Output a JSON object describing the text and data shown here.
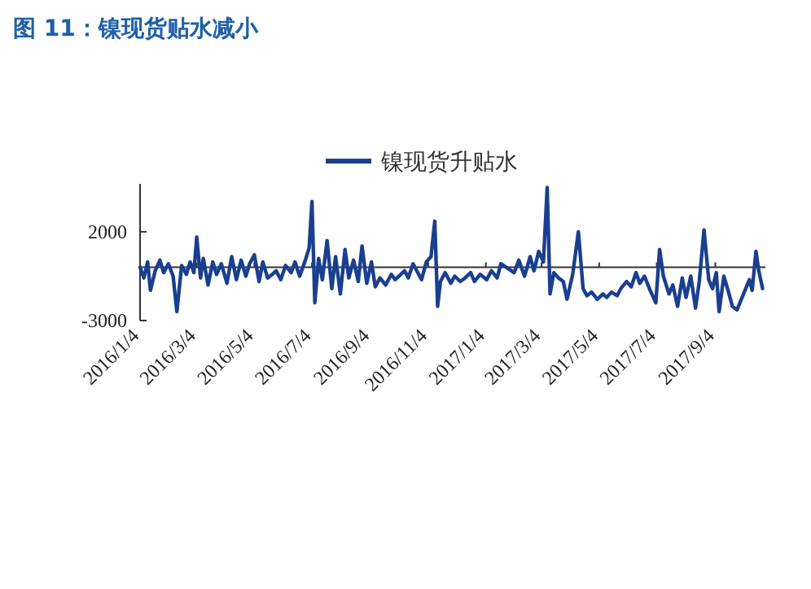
{
  "chart_data": {
    "type": "line",
    "title": "图 11：镍现货贴水减小",
    "legend": "top",
    "grid": false,
    "marker": "none",
    "line_style": "solid",
    "xlim": [
      "2016-01-04",
      "2017-10-27"
    ],
    "ylim": [
      -3000,
      4700
    ],
    "yticks": [
      -3000,
      2000
    ],
    "xticks": [
      {
        "value": "2016-01-04",
        "label": "2016/1/4"
      },
      {
        "value": "2016-03-04",
        "label": "2016/3/4"
      },
      {
        "value": "2016-05-04",
        "label": "2016/5/4"
      },
      {
        "value": "2016-07-04",
        "label": "2016/7/4"
      },
      {
        "value": "2016-09-04",
        "label": "2016/9/4"
      },
      {
        "value": "2016-11-04",
        "label": "2016/11/4"
      },
      {
        "value": "2017-01-04",
        "label": "2017/1/4"
      },
      {
        "value": "2017-03-04",
        "label": "2017/3/4"
      },
      {
        "value": "2017-05-04",
        "label": "2017/5/4"
      },
      {
        "value": "2017-07-04",
        "label": "2017/7/4"
      },
      {
        "value": "2017-09-04",
        "label": "2017/9/4"
      }
    ],
    "x": [
      "2016-01-04",
      "2016-01-08",
      "2016-01-12",
      "2016-01-15",
      "2016-01-20",
      "2016-01-25",
      "2016-01-29",
      "2016-02-03",
      "2016-02-08",
      "2016-02-12",
      "2016-02-17",
      "2016-02-22",
      "2016-02-26",
      "2016-03-01",
      "2016-03-04",
      "2016-03-08",
      "2016-03-11",
      "2016-03-16",
      "2016-03-21",
      "2016-03-25",
      "2016-03-30",
      "2016-04-05",
      "2016-04-10",
      "2016-04-15",
      "2016-04-20",
      "2016-04-25",
      "2016-04-29",
      "2016-05-04",
      "2016-05-09",
      "2016-05-13",
      "2016-05-18",
      "2016-05-23",
      "2016-05-27",
      "2016-06-01",
      "2016-06-06",
      "2016-06-12",
      "2016-06-16",
      "2016-06-21",
      "2016-06-27",
      "2016-07-01",
      "2016-07-04",
      "2016-07-07",
      "2016-07-11",
      "2016-07-15",
      "2016-07-20",
      "2016-07-25",
      "2016-07-29",
      "2016-08-03",
      "2016-08-08",
      "2016-08-12",
      "2016-08-17",
      "2016-08-22",
      "2016-08-26",
      "2016-08-31",
      "2016-09-05",
      "2016-09-09",
      "2016-09-14",
      "2016-09-20",
      "2016-09-26",
      "2016-09-30",
      "2016-10-10",
      "2016-10-14",
      "2016-10-19",
      "2016-10-24",
      "2016-10-28",
      "2016-11-02",
      "2016-11-07",
      "2016-11-11",
      "2016-11-14",
      "2016-11-17",
      "2016-11-22",
      "2016-11-28",
      "2016-12-02",
      "2016-12-08",
      "2016-12-13",
      "2016-12-19",
      "2016-12-23",
      "2016-12-29",
      "2017-01-05",
      "2017-01-10",
      "2017-01-16",
      "2017-01-20",
      "2017-02-03",
      "2017-02-08",
      "2017-02-14",
      "2017-02-20",
      "2017-02-24",
      "2017-03-01",
      "2017-03-06",
      "2017-03-10",
      "2017-03-13",
      "2017-03-17",
      "2017-03-22",
      "2017-03-27",
      "2017-03-31",
      "2017-04-06",
      "2017-04-12",
      "2017-04-17",
      "2017-04-21",
      "2017-04-26",
      "2017-05-02",
      "2017-05-08",
      "2017-05-12",
      "2017-05-17",
      "2017-05-23",
      "2017-05-27",
      "2017-06-02",
      "2017-06-07",
      "2017-06-12",
      "2017-06-16",
      "2017-06-21",
      "2017-06-27",
      "2017-07-03",
      "2017-07-07",
      "2017-07-11",
      "2017-07-17",
      "2017-07-21",
      "2017-07-26",
      "2017-07-31",
      "2017-08-04",
      "2017-08-09",
      "2017-08-14",
      "2017-08-18",
      "2017-08-23",
      "2017-08-28",
      "2017-09-01",
      "2017-09-05",
      "2017-09-08",
      "2017-09-13",
      "2017-09-18",
      "2017-09-22",
      "2017-09-27",
      "2017-10-10",
      "2017-10-13",
      "2017-10-17",
      "2017-10-20",
      "2017-10-24"
    ],
    "series": [
      {
        "name": "镍现货升贴水",
        "color": "#1a3f8f",
        "values": [
          0,
          -600,
          300,
          -1300,
          -200,
          400,
          -300,
          200,
          -500,
          -2500,
          100,
          -400,
          300,
          -300,
          1700,
          -600,
          500,
          -1000,
          300,
          -400,
          200,
          -900,
          600,
          -700,
          400,
          -500,
          200,
          700,
          -800,
          300,
          -600,
          -400,
          -200,
          -700,
          100,
          -300,
          300,
          -500,
          400,
          1100,
          3700,
          -2000,
          500,
          -700,
          1500,
          -1200,
          600,
          -1500,
          1000,
          -600,
          400,
          -800,
          1200,
          -900,
          300,
          -1100,
          -600,
          -1000,
          -400,
          -700,
          -200,
          -600,
          200,
          -300,
          -700,
          300,
          600,
          2600,
          -2200,
          -800,
          -300,
          -900,
          -500,
          -800,
          -600,
          -300,
          -800,
          -400,
          -700,
          -200,
          -600,
          200,
          -300,
          400,
          -500,
          600,
          -200,
          900,
          300,
          4500,
          -1500,
          -300,
          -600,
          -800,
          -1800,
          -400,
          2000,
          -1200,
          -1600,
          -1400,
          -1800,
          -1500,
          -1700,
          -1400,
          -1600,
          -1200,
          -800,
          -1100,
          -300,
          -900,
          -500,
          -1300,
          -2000,
          1000,
          -500,
          -1500,
          -1000,
          -2200,
          -600,
          -1700,
          -500,
          -2300,
          -800,
          2100,
          -700,
          -1200,
          -300,
          -2500,
          -500,
          -1400,
          -2200,
          -2400,
          -700,
          -1300,
          900,
          -200,
          -1200
        ]
      }
    ]
  }
}
